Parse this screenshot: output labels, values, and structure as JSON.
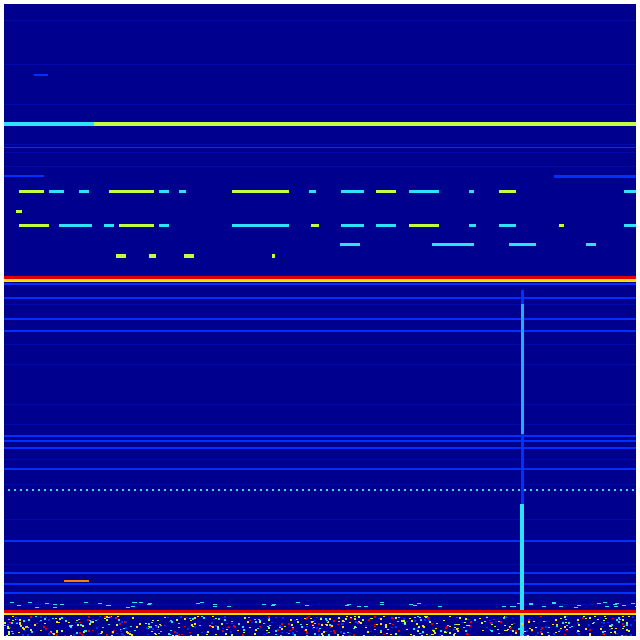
{
  "spectrogram": {
    "colormap": "jet",
    "colors": {
      "background": "#00008f",
      "faint_line": "#0010c8",
      "blue_line": "#0030ff",
      "cyan": "#30e0ff",
      "green_yellow": "#c0ff40",
      "yellow": "#ffe000",
      "orange": "#ff8000",
      "red": "#e00000"
    }
  }
}
